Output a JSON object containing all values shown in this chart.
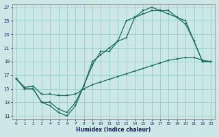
{
  "xlabel": "Humidex (Indice chaleur)",
  "bg_color": "#cce8e6",
  "grid_color": "#99ccc8",
  "line_color": "#1a6b5e",
  "xlim": [
    -0.5,
    23.5
  ],
  "ylim": [
    10.5,
    27.5
  ],
  "xticks": [
    0,
    1,
    2,
    3,
    4,
    5,
    6,
    7,
    8,
    9,
    10,
    11,
    12,
    13,
    14,
    15,
    16,
    17,
    18,
    19,
    20,
    21,
    22,
    23
  ],
  "yticks": [
    11,
    13,
    15,
    17,
    19,
    21,
    23,
    25,
    27
  ],
  "line1_x": [
    0,
    1,
    2,
    3,
    4,
    5,
    6,
    7,
    8,
    9,
    10,
    11,
    12,
    13,
    14,
    15,
    16,
    17,
    18,
    19,
    20,
    21,
    22,
    23
  ],
  "line1_y": [
    16.5,
    15,
    15,
    13,
    12.5,
    11.5,
    11,
    12.5,
    15.5,
    18.5,
    20.5,
    20.5,
    22,
    25,
    25.5,
    26.5,
    27,
    26.5,
    26,
    25.5,
    25,
    22,
    19,
    19
  ],
  "line2_x": [
    0,
    1,
    2,
    3,
    4,
    5,
    6,
    7,
    8,
    9,
    10,
    11,
    12,
    13,
    14,
    15,
    16,
    17,
    18,
    19,
    20,
    21,
    22,
    23
  ],
  "line2_y": [
    16.5,
    15,
    15,
    13,
    13,
    12,
    11.5,
    13,
    15.5,
    19,
    20,
    21,
    22,
    22.5,
    25.5,
    26,
    26.5,
    26.5,
    26.5,
    25.5,
    24.5,
    22,
    19,
    19
  ],
  "line3_x": [
    0,
    1,
    2,
    3,
    4,
    5,
    6,
    7,
    8,
    9,
    10,
    11,
    12,
    13,
    14,
    15,
    16,
    17,
    18,
    19,
    20,
    21,
    22,
    23
  ],
  "line3_y": [
    16.5,
    15.2,
    15.4,
    14.2,
    14.2,
    14.0,
    14.0,
    14.2,
    15.0,
    15.6,
    16.0,
    16.4,
    16.8,
    17.2,
    17.6,
    18.0,
    18.4,
    18.8,
    19.2,
    19.4,
    19.6,
    19.6,
    19.2,
    19.0
  ]
}
